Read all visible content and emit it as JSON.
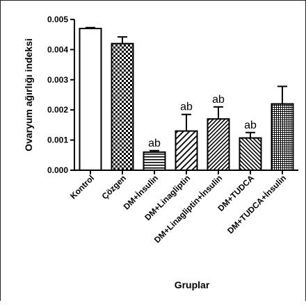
{
  "chart_data": {
    "type": "bar",
    "xlabel": "Gruplar",
    "ylabel": "Ovaryum ağırlığı indeksi",
    "ylim": [
      0,
      0.005
    ],
    "yticks": [
      "0.000",
      "0.001",
      "0.002",
      "0.003",
      "0.004",
      "0.005"
    ],
    "ytick_values": [
      0,
      0.001,
      0.002,
      0.003,
      0.004,
      0.005
    ],
    "categories": [
      "Kontrol",
      "Çözgen",
      "DM+İnsulin",
      "DM+Linagliptin",
      "DM+Linagliptin+İnsulin",
      "DM+TUDCA",
      "DM+TUDCA+İnsulin"
    ],
    "values": [
      0.0047,
      0.0042,
      0.0006,
      0.0013,
      0.0017,
      0.00107,
      0.0022
    ],
    "error_upper": [
      3e-05,
      0.00022,
      5e-05,
      0.00055,
      0.0004,
      0.00018,
      0.00058
    ],
    "annotations": [
      "",
      "",
      "ab",
      "ab",
      "ab",
      "ab",
      ""
    ],
    "patterns": [
      "none",
      "checker",
      "horizontal-lines",
      "diagonal-lines",
      "diagonal-lines-dense",
      "diagonal-lines-reverse",
      "grid"
    ],
    "bar_fill": "#ffffff",
    "bar_stroke": "#000000",
    "grid": false,
    "legend": "none"
  }
}
